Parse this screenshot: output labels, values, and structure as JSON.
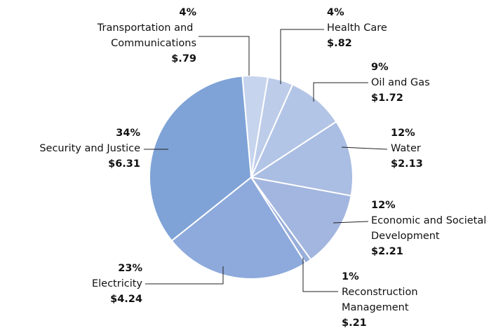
{
  "chart_data": {
    "type": "pie",
    "categories": [
      "Transportation and Communications",
      "Health Care",
      "Oil and Gas",
      "Water",
      "Economic and Societal Development",
      "Reconstruction Management",
      "Electricity",
      "Security and Justice"
    ],
    "values": [
      4,
      4,
      9,
      12,
      12,
      1,
      23,
      34
    ],
    "value_labels": [
      "4%",
      "4%",
      "9%",
      "12%",
      "12%",
      "1%",
      "23%",
      "34%"
    ],
    "amounts": [
      0.79,
      0.82,
      1.72,
      2.13,
      2.21,
      0.21,
      4.24,
      6.31
    ],
    "amount_labels": [
      "$.79",
      "$.82",
      "$1.72",
      "$2.13",
      "$2.21",
      "$.21",
      "$4.24",
      "$6.31"
    ],
    "colors": [
      "#c6d4ed",
      "#bdcce9",
      "#b3c5e6",
      "#aabde2",
      "#a2b6df",
      "#99afdb",
      "#8eaadc",
      "#7fa3d7"
    ]
  }
}
